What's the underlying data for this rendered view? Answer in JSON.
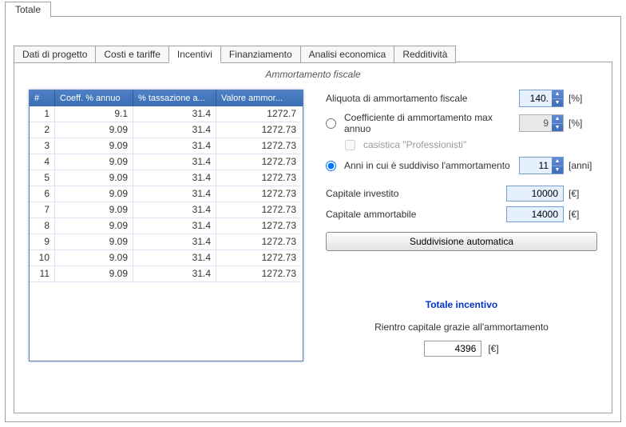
{
  "outerTab": "Totale",
  "tabs": {
    "items": [
      "Dati di progetto",
      "Costi e tariffe",
      "Incentivi",
      "Finanziamento",
      "Analisi economica",
      "Redditività"
    ],
    "activeIndex": 2
  },
  "section_title": "Ammortamento fiscale",
  "table": {
    "headers": {
      "idx": "#",
      "a": "Coeff. % annuo",
      "b": "% tassazione a...",
      "c": "Valore ammor..."
    },
    "rows": [
      {
        "idx": "1",
        "a": "9.1",
        "b": "31.4",
        "c": "1272.7"
      },
      {
        "idx": "2",
        "a": "9.09",
        "b": "31.4",
        "c": "1272.73"
      },
      {
        "idx": "3",
        "a": "9.09",
        "b": "31.4",
        "c": "1272.73"
      },
      {
        "idx": "4",
        "a": "9.09",
        "b": "31.4",
        "c": "1272.73"
      },
      {
        "idx": "5",
        "a": "9.09",
        "b": "31.4",
        "c": "1272.73"
      },
      {
        "idx": "6",
        "a": "9.09",
        "b": "31.4",
        "c": "1272.73"
      },
      {
        "idx": "7",
        "a": "9.09",
        "b": "31.4",
        "c": "1272.73"
      },
      {
        "idx": "8",
        "a": "9.09",
        "b": "31.4",
        "c": "1272.73"
      },
      {
        "idx": "9",
        "a": "9.09",
        "b": "31.4",
        "c": "1272.73"
      },
      {
        "idx": "10",
        "a": "9.09",
        "b": "31.4",
        "c": "1272.73"
      },
      {
        "idx": "11",
        "a": "9.09",
        "b": "31.4",
        "c": "1272.73"
      }
    ],
    "col_widths": {
      "idx": 32,
      "a": 98,
      "b": 104,
      "c": 106
    },
    "header_bg_from": "#4f81c7",
    "header_bg_to": "#3b6db3",
    "border_color": "#5a7fb2",
    "grid_color": "#d9e2ee"
  },
  "form": {
    "aliquota_label": "Aliquota di ammortamento fiscale",
    "aliquota_value": "140.",
    "aliquota_unit": "[%]",
    "coeff_label": "Coefficiente di ammortamento max annuo",
    "coeff_value": "9",
    "coeff_unit": "[%]",
    "coeff_selected": false,
    "casistica_label": "casistica \"Professionisti\"",
    "casistica_checked": false,
    "anni_label": "Anni in cui è suddiviso l'ammortamento",
    "anni_value": "11",
    "anni_unit": "[anni]",
    "anni_selected": true,
    "cap_inv_label": "Capitale investito",
    "cap_inv_value": "10000",
    "cap_inv_unit": "[€]",
    "cap_amm_label": "Capitale ammortabile",
    "cap_amm_value": "14000",
    "cap_amm_unit": "[€]",
    "btn_label": "Suddivisione automatica"
  },
  "totale": {
    "title": "Totale incentivo",
    "rientro_label": "Rientro capitale grazie all'ammortamento",
    "rientro_value": "4396",
    "rientro_unit": "[€]"
  },
  "colors": {
    "accent_input_bg": "#e5f0ff",
    "accent_border": "#7a9ccc",
    "link_blue": "#0033cc"
  }
}
